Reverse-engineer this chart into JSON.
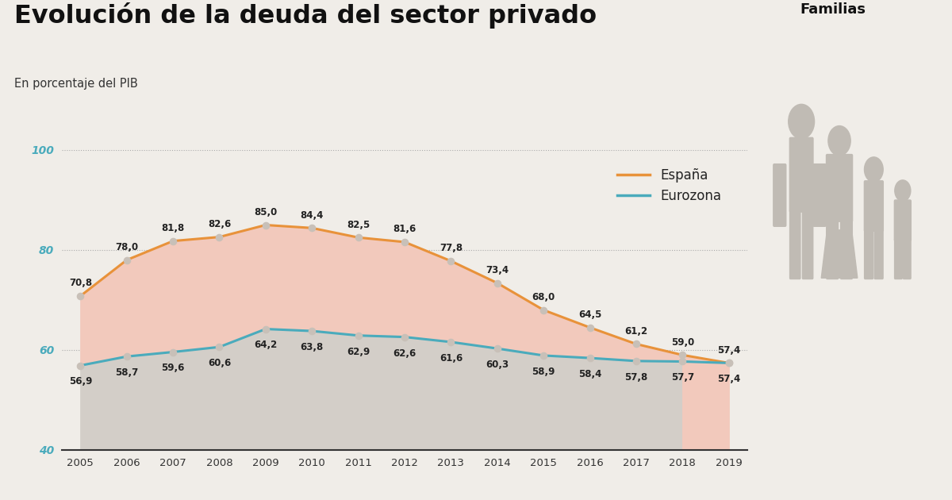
{
  "title": "Evolución de la deuda del sector privado",
  "subtitle": "En porcentaje del PIB",
  "years": [
    2005,
    2006,
    2007,
    2008,
    2009,
    2010,
    2011,
    2012,
    2013,
    2014,
    2015,
    2016,
    2017,
    2018,
    2019
  ],
  "espana": [
    70.8,
    78.0,
    81.8,
    82.6,
    85.0,
    84.4,
    82.5,
    81.6,
    77.8,
    73.4,
    68.0,
    64.5,
    61.2,
    59.0,
    57.4
  ],
  "eurozona": [
    56.9,
    58.7,
    59.6,
    60.6,
    64.2,
    63.8,
    62.9,
    62.6,
    61.6,
    60.3,
    58.9,
    58.4,
    57.8,
    57.7,
    57.4
  ],
  "espana_color": "#E8923A",
  "eurozona_color": "#4AABBC",
  "fill_between_color": "#F2C9BC",
  "fill_below_euro_main": "#D3CEC8",
  "fill_below_euro_last": "#F2C9BC",
  "background_color": "#F0EDE8",
  "ylim": [
    40,
    100
  ],
  "yticks": [
    40,
    60,
    80,
    100
  ],
  "legend_label_espana": "España",
  "legend_label_eurozona": "Eurozona",
  "families_label": "Familias",
  "figure_width": 12.0,
  "figure_height": 6.3,
  "icon_color": "#C0BBB4"
}
